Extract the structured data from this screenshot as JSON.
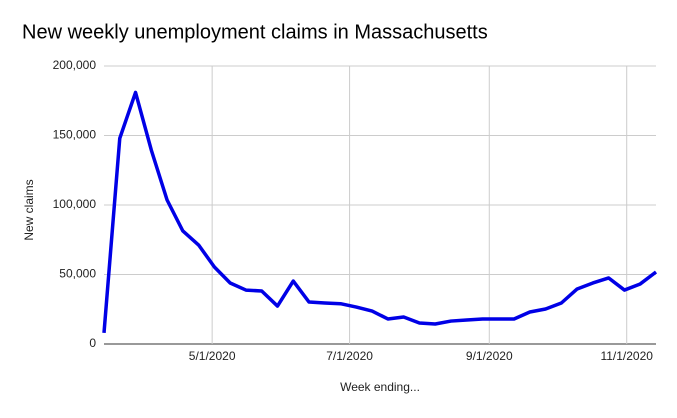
{
  "chart_data": {
    "type": "line",
    "title": "New weekly unemployment claims in Massachusetts",
    "x_label": "Week ending...",
    "y_label": "New claims",
    "x": [
      "3/14/2020",
      "3/21/2020",
      "3/28/2020",
      "4/4/2020",
      "4/11/2020",
      "4/18/2020",
      "4/25/2020",
      "5/2/2020",
      "5/9/2020",
      "5/16/2020",
      "5/23/2020",
      "5/30/2020",
      "6/6/2020",
      "6/13/2020",
      "6/20/2020",
      "6/27/2020",
      "7/4/2020",
      "7/11/2020",
      "7/18/2020",
      "7/25/2020",
      "8/1/2020",
      "8/8/2020",
      "8/15/2020",
      "8/22/2020",
      "8/29/2020",
      "9/5/2020",
      "9/12/2020",
      "9/19/2020",
      "9/26/2020",
      "10/3/2020",
      "10/10/2020",
      "10/17/2020",
      "10/24/2020",
      "10/31/2020",
      "11/7/2020",
      "11/14/2020"
    ],
    "series": [
      {
        "name": "New claims",
        "color": "#0000e6",
        "values": [
          8000,
          148000,
          181000,
          139500,
          103600,
          81300,
          71200,
          55400,
          43900,
          38800,
          38100,
          27300,
          45300,
          30200,
          29500,
          29000,
          26600,
          23700,
          18000,
          19400,
          15100,
          14400,
          16500,
          17300,
          18000,
          18000,
          18000,
          23000,
          25200,
          29500,
          39600,
          43900,
          47500,
          38800,
          43200,
          51800
        ]
      }
    ],
    "xlim": [
      "3/14/2020",
      "11/14/2020"
    ],
    "xticks": [
      "5/1/2020",
      "7/1/2020",
      "9/1/2020",
      "11/1/2020"
    ],
    "ylim": [
      0,
      200000
    ],
    "yticks": [
      {
        "value": 0,
        "label": "0"
      },
      {
        "value": 50000,
        "label": "50,000"
      },
      {
        "value": 100000,
        "label": "100,000"
      },
      {
        "value": 150000,
        "label": "150,000"
      },
      {
        "value": 200000,
        "label": "200,000"
      }
    ],
    "grid": true
  }
}
